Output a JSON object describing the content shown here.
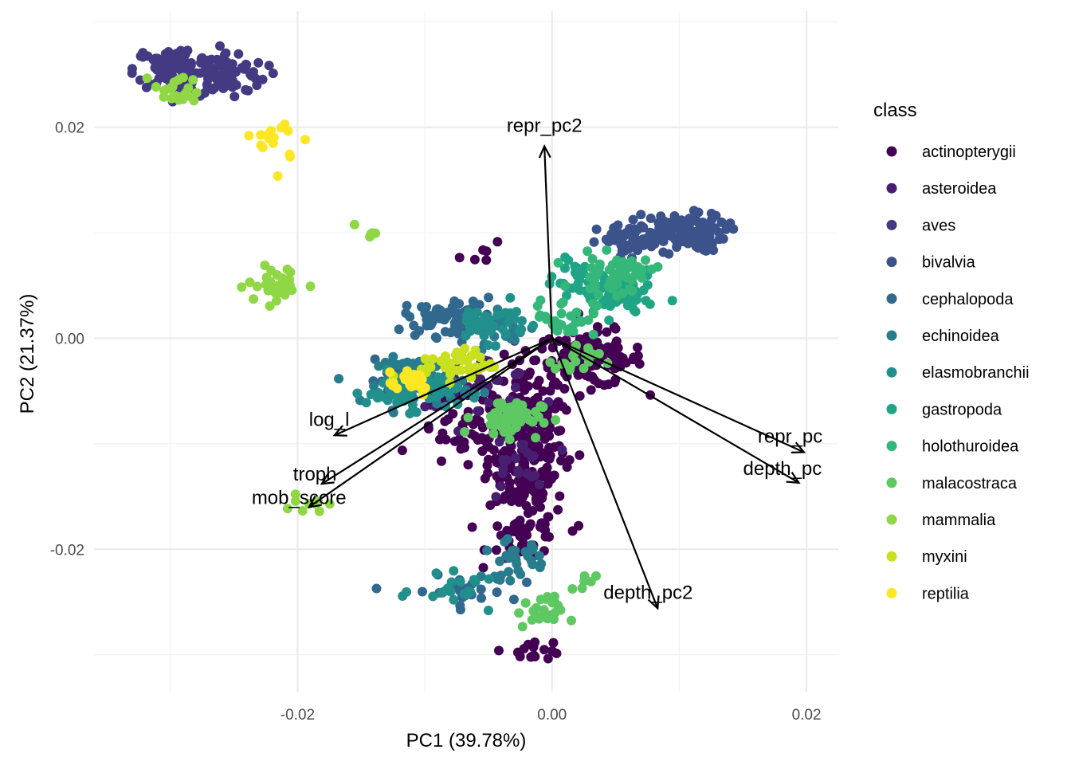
{
  "chart_data": {
    "type": "scatter",
    "subtype": "pca-biplot",
    "xlabel": "PC1 (39.78%)",
    "ylabel": "PC2 (21.37%)",
    "xlim": [
      -0.036,
      0.0225
    ],
    "ylim": [
      -0.0335,
      0.031
    ],
    "x_ticks": [
      -0.02,
      0.0,
      0.02
    ],
    "y_ticks": [
      -0.02,
      0.0,
      0.02
    ],
    "x_tick_labels": [
      "-0.02",
      "0.00",
      "0.02"
    ],
    "y_tick_labels": [
      "-0.02",
      "0.00",
      "0.02"
    ],
    "grid": true,
    "legend_position": "right",
    "legend_title": "class",
    "series": [
      {
        "name": "actinopterygii",
        "color": "#440154",
        "clusters": [
          {
            "center": [
              -0.002,
              -0.01
            ],
            "spread": [
              0.0025,
              0.0065
            ],
            "n": 260
          },
          {
            "center": [
              0.003,
              -0.002
            ],
            "spread": [
              0.0035,
              0.0022
            ],
            "n": 120
          },
          {
            "center": [
              -0.007,
              -0.009
            ],
            "spread": [
              0.003,
              0.003
            ],
            "n": 50
          },
          {
            "center": [
              -0.002,
              -0.019
            ],
            "spread": [
              0.0025,
              0.0018
            ],
            "n": 40
          },
          {
            "center": [
              -0.0015,
              -0.0295
            ],
            "spread": [
              0.002,
              0.0008
            ],
            "n": 16
          },
          {
            "center": [
              -0.005,
              0.008
            ],
            "spread": [
              0.002,
              0.0008
            ],
            "n": 6
          }
        ]
      },
      {
        "name": "asteroidea",
        "color": "#481F70",
        "clusters": [
          {
            "center": [
              -0.006,
              -0.004
            ],
            "spread": [
              0.004,
              0.002
            ],
            "n": 40
          },
          {
            "center": [
              -0.003,
              -0.012
            ],
            "spread": [
              0.002,
              0.003
            ],
            "n": 25
          }
        ]
      },
      {
        "name": "aves",
        "color": "#443A83",
        "clusters": [
          {
            "center": [
              -0.0295,
              0.0255
            ],
            "spread": [
              0.0028,
              0.0018
            ],
            "n": 110
          },
          {
            "center": [
              -0.0255,
              0.025
            ],
            "spread": [
              0.0025,
              0.0018
            ],
            "n": 70
          }
        ]
      },
      {
        "name": "bivalvia",
        "color": "#3B528B",
        "clusters": [
          {
            "center": [
              0.01,
              0.01
            ],
            "spread": [
              0.003,
              0.0015
            ],
            "n": 120
          },
          {
            "center": [
              0.006,
              0.009
            ],
            "spread": [
              0.002,
              0.0015
            ],
            "n": 40
          }
        ]
      },
      {
        "name": "cephalopoda",
        "color": "#31688E",
        "clusters": [
          {
            "center": [
              -0.008,
              0.002
            ],
            "spread": [
              0.003,
              0.0015
            ],
            "n": 70
          },
          {
            "center": [
              -0.0075,
              -0.024
            ],
            "spread": [
              0.0035,
              0.0012
            ],
            "n": 30
          },
          {
            "center": [
              -0.012,
              -0.004
            ],
            "spread": [
              0.002,
              0.0015
            ],
            "n": 20
          }
        ]
      },
      {
        "name": "echinoidea",
        "color": "#287C8E",
        "clusters": [
          {
            "center": [
              -0.01,
              -0.004
            ],
            "spread": [
              0.003,
              0.0018
            ],
            "n": 70
          },
          {
            "center": [
              -0.003,
              -0.021
            ],
            "spread": [
              0.002,
              0.0015
            ],
            "n": 30
          },
          {
            "center": [
              -0.004,
              0.001
            ],
            "spread": [
              0.002,
              0.0012
            ],
            "n": 30
          }
        ]
      },
      {
        "name": "elasmobranchii",
        "color": "#21908C",
        "clusters": [
          {
            "center": [
              -0.011,
              -0.005
            ],
            "spread": [
              0.003,
              0.0015
            ],
            "n": 70
          },
          {
            "center": [
              -0.005,
              0.0015
            ],
            "spread": [
              0.0025,
              0.0015
            ],
            "n": 40
          },
          {
            "center": [
              -0.007,
              -0.024
            ],
            "spread": [
              0.003,
              0.0012
            ],
            "n": 20
          }
        ]
      },
      {
        "name": "gastropoda",
        "color": "#20A486",
        "clusters": [
          {
            "center": [
              0.005,
              0.004
            ],
            "spread": [
              0.0025,
              0.0018
            ],
            "n": 70
          },
          {
            "center": [
              0.002,
              0.006
            ],
            "spread": [
              0.0015,
              0.0015
            ],
            "n": 25
          }
        ]
      },
      {
        "name": "holothuroidea",
        "color": "#35B779",
        "clusters": [
          {
            "center": [
              0.005,
              0.006
            ],
            "spread": [
              0.0025,
              0.0015
            ],
            "n": 50
          },
          {
            "center": [
              0.001,
              0.002
            ],
            "spread": [
              0.002,
              0.0015
            ],
            "n": 30
          }
        ]
      },
      {
        "name": "malacostraca",
        "color": "#5EC962",
        "clusters": [
          {
            "center": [
              -0.0035,
              -0.0075
            ],
            "spread": [
              0.0022,
              0.0015
            ],
            "n": 60
          },
          {
            "center": [
              -0.001,
              -0.026
            ],
            "spread": [
              0.0015,
              0.0012
            ],
            "n": 25
          },
          {
            "center": [
              0.002,
              -0.002
            ],
            "spread": [
              0.0015,
              0.0015
            ],
            "n": 20
          },
          {
            "center": [
              0.0025,
              -0.0235
            ],
            "spread": [
              0.0008,
              0.0008
            ],
            "n": 6
          }
        ]
      },
      {
        "name": "mammalia",
        "color": "#8FD744",
        "clusters": [
          {
            "center": [
              -0.0295,
              0.0235
            ],
            "spread": [
              0.0015,
              0.0012
            ],
            "n": 22
          },
          {
            "center": [
              -0.0215,
              0.005
            ],
            "spread": [
              0.002,
              0.0015
            ],
            "n": 35
          },
          {
            "center": [
              -0.0145,
              0.01
            ],
            "spread": [
              0.0007,
              0.0007
            ],
            "n": 5
          },
          {
            "center": [
              -0.0195,
              -0.0155
            ],
            "spread": [
              0.0015,
              0.0008
            ],
            "n": 9
          }
        ]
      },
      {
        "name": "myxini",
        "color": "#C8E020",
        "clusters": [
          {
            "center": [
              -0.0075,
              -0.0025
            ],
            "spread": [
              0.0025,
              0.0012
            ],
            "n": 45
          }
        ]
      },
      {
        "name": "reptilia",
        "color": "#FDE725",
        "clusters": [
          {
            "center": [
              -0.021,
              0.0185
            ],
            "spread": [
              0.0018,
              0.0022
            ],
            "n": 16
          },
          {
            "center": [
              -0.0115,
              -0.004
            ],
            "spread": [
              0.002,
              0.0012
            ],
            "n": 25
          }
        ]
      }
    ],
    "loadings": [
      {
        "label": "repr_pc2",
        "x": -0.0006,
        "y": 0.0182
      },
      {
        "label": "log_l",
        "x": -0.0171,
        "y": -0.0092
      },
      {
        "label": "troph",
        "x": -0.0181,
        "y": -0.0138
      },
      {
        "label": "mob_score",
        "x": -0.0191,
        "y": -0.016
      },
      {
        "label": "repr_pc",
        "x": 0.0198,
        "y": -0.0108
      },
      {
        "label": "depth_pc",
        "x": 0.0194,
        "y": -0.0137
      },
      {
        "label": "depth_pc2",
        "x": 0.0083,
        "y": -0.0256
      }
    ]
  }
}
